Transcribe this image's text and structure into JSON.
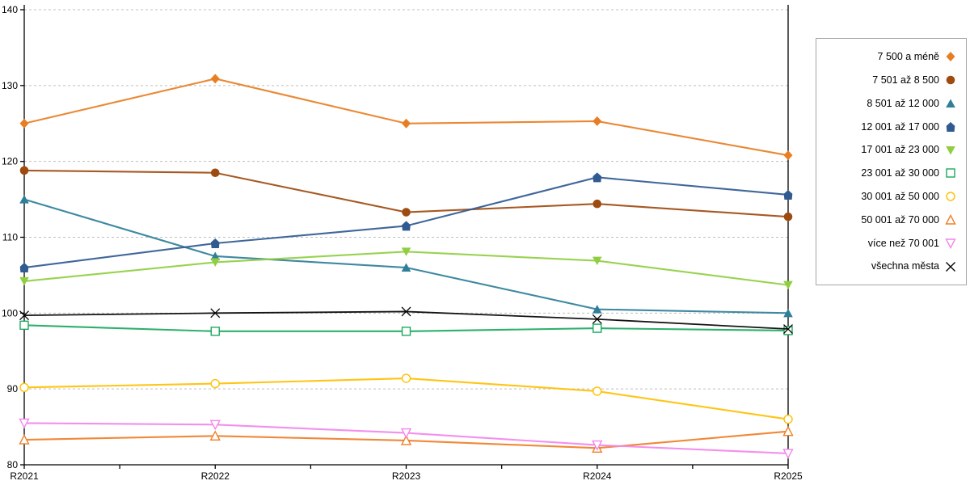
{
  "chart_data": {
    "type": "line",
    "title": "",
    "xlabel": "",
    "ylabel": "",
    "categories": [
      "R2021",
      "R2022",
      "R2023",
      "R2024",
      "R2025"
    ],
    "ylim": [
      80,
      140
    ],
    "yticks": [
      80,
      90,
      100,
      110,
      120,
      130,
      140
    ],
    "grid": "horizontal-dashed",
    "grid_color": "#bfbfbf",
    "axis_color": "#000000",
    "legend_position": "right-outside",
    "series": [
      {
        "name": "7 500 a méně",
        "marker": "diamond",
        "color": "#e87e23",
        "values": [
          125.0,
          130.9,
          125.0,
          125.3,
          120.8
        ]
      },
      {
        "name": "7 501 až 8 500",
        "marker": "circle",
        "color": "#9e4b10",
        "values": [
          118.8,
          118.5,
          113.3,
          114.4,
          112.7
        ]
      },
      {
        "name": "8 501 až 12 000",
        "marker": "triangle-up",
        "color": "#2e7f99",
        "values": [
          115.0,
          107.5,
          106.0,
          100.5,
          100.0
        ]
      },
      {
        "name": "12 001 až 17 000",
        "marker": "pentagon",
        "color": "#305a91",
        "values": [
          106.0,
          109.2,
          111.5,
          117.9,
          115.6
        ]
      },
      {
        "name": "17 001 až 23 000",
        "marker": "triangle-down",
        "color": "#90ce41",
        "values": [
          104.2,
          106.7,
          108.1,
          106.9,
          103.7
        ]
      },
      {
        "name": "23 001 až 30 000",
        "marker": "square-open",
        "color": "#1ca95e",
        "values": [
          98.4,
          97.6,
          97.6,
          98.0,
          97.7
        ]
      },
      {
        "name": "30 001 až 50 000",
        "marker": "circle-open",
        "color": "#ffc000",
        "values": [
          90.2,
          90.7,
          91.4,
          89.7,
          86.0
        ]
      },
      {
        "name": "50 001 až 70 000",
        "marker": "triangle-up-open",
        "color": "#f07e27",
        "values": [
          83.3,
          83.8,
          83.2,
          82.2,
          84.4
        ]
      },
      {
        "name": "více než 70 001",
        "marker": "triangle-down-open",
        "color": "#f285ec",
        "values": [
          85.5,
          85.3,
          84.2,
          82.6,
          81.5
        ]
      },
      {
        "name": "všechna města",
        "marker": "x-cross",
        "color": "#000000",
        "values": [
          99.7,
          100.0,
          100.2,
          99.2,
          97.9
        ]
      }
    ]
  }
}
